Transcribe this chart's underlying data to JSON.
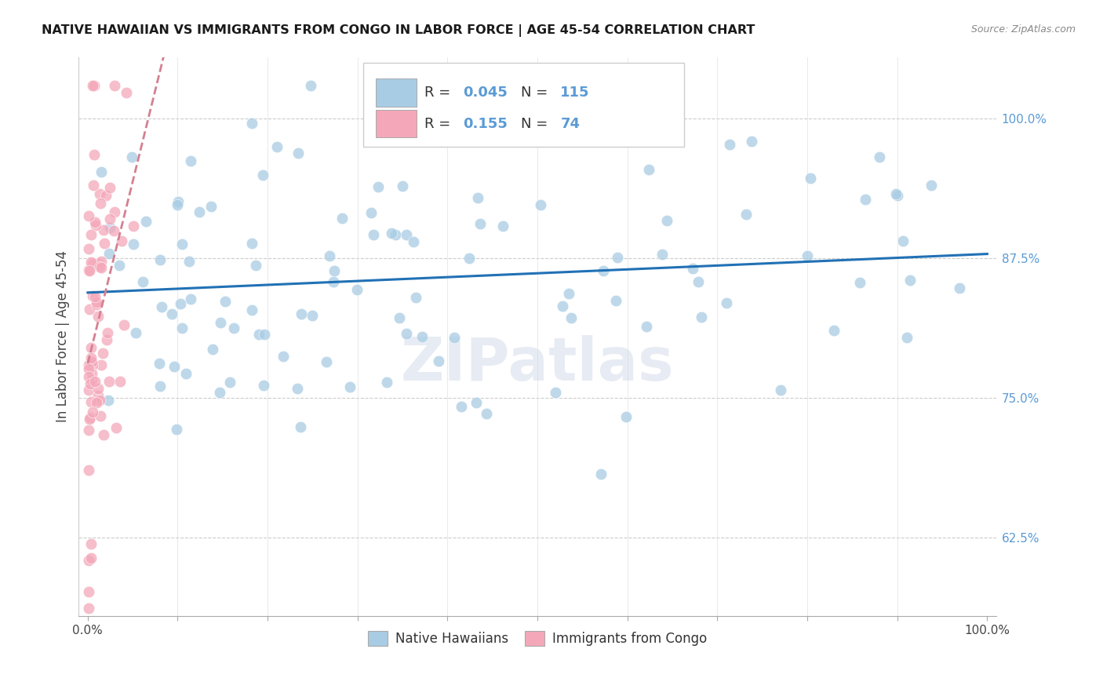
{
  "title": "NATIVE HAWAIIAN VS IMMIGRANTS FROM CONGO IN LABOR FORCE | AGE 45-54 CORRELATION CHART",
  "source": "Source: ZipAtlas.com",
  "ylabel": "In Labor Force | Age 45-54",
  "legend_label1": "Native Hawaiians",
  "legend_label2": "Immigrants from Congo",
  "r1": 0.045,
  "n1": 115,
  "r2": 0.155,
  "n2": 74,
  "color_blue": "#a8cce4",
  "color_pink": "#f4a7b9",
  "color_line_blue": "#2171b5",
  "color_line_pink": "#d48090",
  "yticks": [
    0.625,
    0.75,
    0.875,
    1.0
  ],
  "ytick_labels": [
    "62.5%",
    "75.0%",
    "87.5%",
    "100.0%"
  ],
  "ymin": 0.555,
  "ymax": 1.055,
  "xmin": -0.01,
  "xmax": 1.01,
  "watermark": "ZIPatlas"
}
